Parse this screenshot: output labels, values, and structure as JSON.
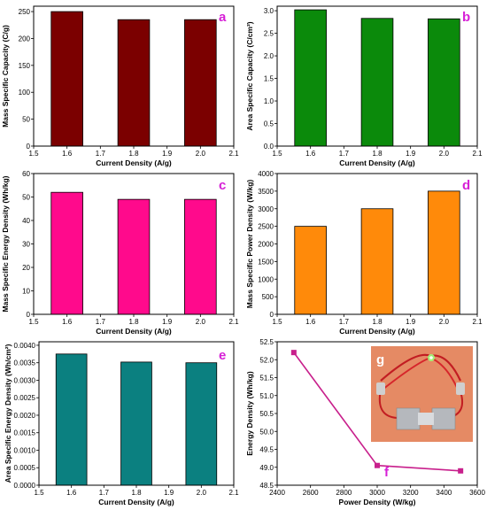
{
  "chart_data": [
    {
      "panel": "a",
      "type": "bar",
      "x": [
        1.6,
        1.8,
        2.0
      ],
      "values": [
        250,
        235,
        235
      ],
      "color": "#7b0000",
      "xlabel": "Current Density (A/g)",
      "ylabel": "Mass Specific Capacity (C/g)",
      "xlim": [
        1.5,
        2.1
      ],
      "ylim": [
        0,
        260
      ],
      "xticks": [
        "1.5",
        "1.6",
        "1.7",
        "1.8",
        "1.9",
        "2.0",
        "2.1"
      ],
      "yticks": [
        "0",
        "50",
        "100",
        "150",
        "200",
        "250"
      ],
      "panel_label_color": "#d61fd6"
    },
    {
      "panel": "b",
      "type": "bar",
      "x": [
        1.6,
        1.8,
        2.0
      ],
      "values": [
        3.02,
        2.83,
        2.82
      ],
      "color": "#0b8a0b",
      "xlabel": "Current Density (A/g)",
      "ylabel": "Area Specific Capacity (C/cm²)",
      "xlim": [
        1.5,
        2.1
      ],
      "ylim": [
        0,
        3.1
      ],
      "xticks": [
        "1.5",
        "1.6",
        "1.7",
        "1.8",
        "1.9",
        "2.0",
        "2.1"
      ],
      "yticks": [
        "0.0",
        "0.5",
        "1.0",
        "1.5",
        "2.0",
        "2.5",
        "3.0"
      ],
      "panel_label_color": "#d61fd6"
    },
    {
      "panel": "c",
      "type": "bar",
      "x": [
        1.6,
        1.8,
        2.0
      ],
      "values": [
        52,
        49,
        49
      ],
      "color": "#ff0a8c",
      "xlabel": "Current Density (A/g)",
      "ylabel": "Mass Specific Energy Density (Wh/kg)",
      "xlim": [
        1.5,
        2.1
      ],
      "ylim": [
        0,
        60
      ],
      "xticks": [
        "1.5",
        "1.6",
        "1.7",
        "1.8",
        "1.9",
        "2.0",
        "2.1"
      ],
      "yticks": [
        "0",
        "10",
        "20",
        "30",
        "40",
        "50",
        "60"
      ],
      "panel_label_color": "#d61fd6"
    },
    {
      "panel": "d",
      "type": "bar",
      "x": [
        1.6,
        1.8,
        2.0
      ],
      "values": [
        2500,
        3000,
        3500
      ],
      "color": "#ff8a0a",
      "xlabel": "Current Density (A/g)",
      "ylabel": "Mass Specific Power Density (W/kg)",
      "xlim": [
        1.5,
        2.1
      ],
      "ylim": [
        0,
        4000
      ],
      "xticks": [
        "1.5",
        "1.6",
        "1.7",
        "1.8",
        "1.9",
        "2.0",
        "2.1"
      ],
      "yticks": [
        "0",
        "500",
        "1000",
        "1500",
        "2000",
        "2500",
        "3000",
        "3500",
        "4000"
      ],
      "panel_label_color": "#d61fd6"
    },
    {
      "panel": "e",
      "type": "bar",
      "x": [
        1.6,
        1.8,
        2.0
      ],
      "values": [
        0.00375,
        0.00352,
        0.0035
      ],
      "color": "#0b8080",
      "xlabel": "Current Density (A/g)",
      "ylabel": "Area Specific Energy Density (Wh/cm²)",
      "xlim": [
        1.5,
        2.1
      ],
      "ylim": [
        0,
        0.0041
      ],
      "xticks": [
        "1.5",
        "1.6",
        "1.7",
        "1.8",
        "1.9",
        "2.0",
        "2.1"
      ],
      "yticks": [
        "0.0000",
        "0.0005",
        "0.0010",
        "0.0015",
        "0.0020",
        "0.0025",
        "0.0030",
        "0.0035",
        "0.0040"
      ],
      "panel_label_color": "#d61fd6"
    },
    {
      "panel": "f",
      "type": "line",
      "x": [
        2500,
        3000,
        3500
      ],
      "values": [
        52.2,
        49.05,
        48.9
      ],
      "color": "#c8208c",
      "marker": "square",
      "xlabel": "Power Density (W/kg)",
      "ylabel": "Energy Density (Wh/kg)",
      "xlim": [
        2400,
        3600
      ],
      "ylim": [
        48.5,
        52.5
      ],
      "xticks": [
        "2400",
        "2600",
        "2800",
        "3000",
        "3200",
        "3400",
        "3600"
      ],
      "yticks": [
        "48.5",
        "49.0",
        "49.5",
        "50.0",
        "50.5",
        "51.0",
        "51.5",
        "52.0",
        "52.5"
      ],
      "panel_label_color": "#d61fd6",
      "inset": {
        "panel": "g",
        "panel_label_color": "#ffffff"
      }
    }
  ]
}
